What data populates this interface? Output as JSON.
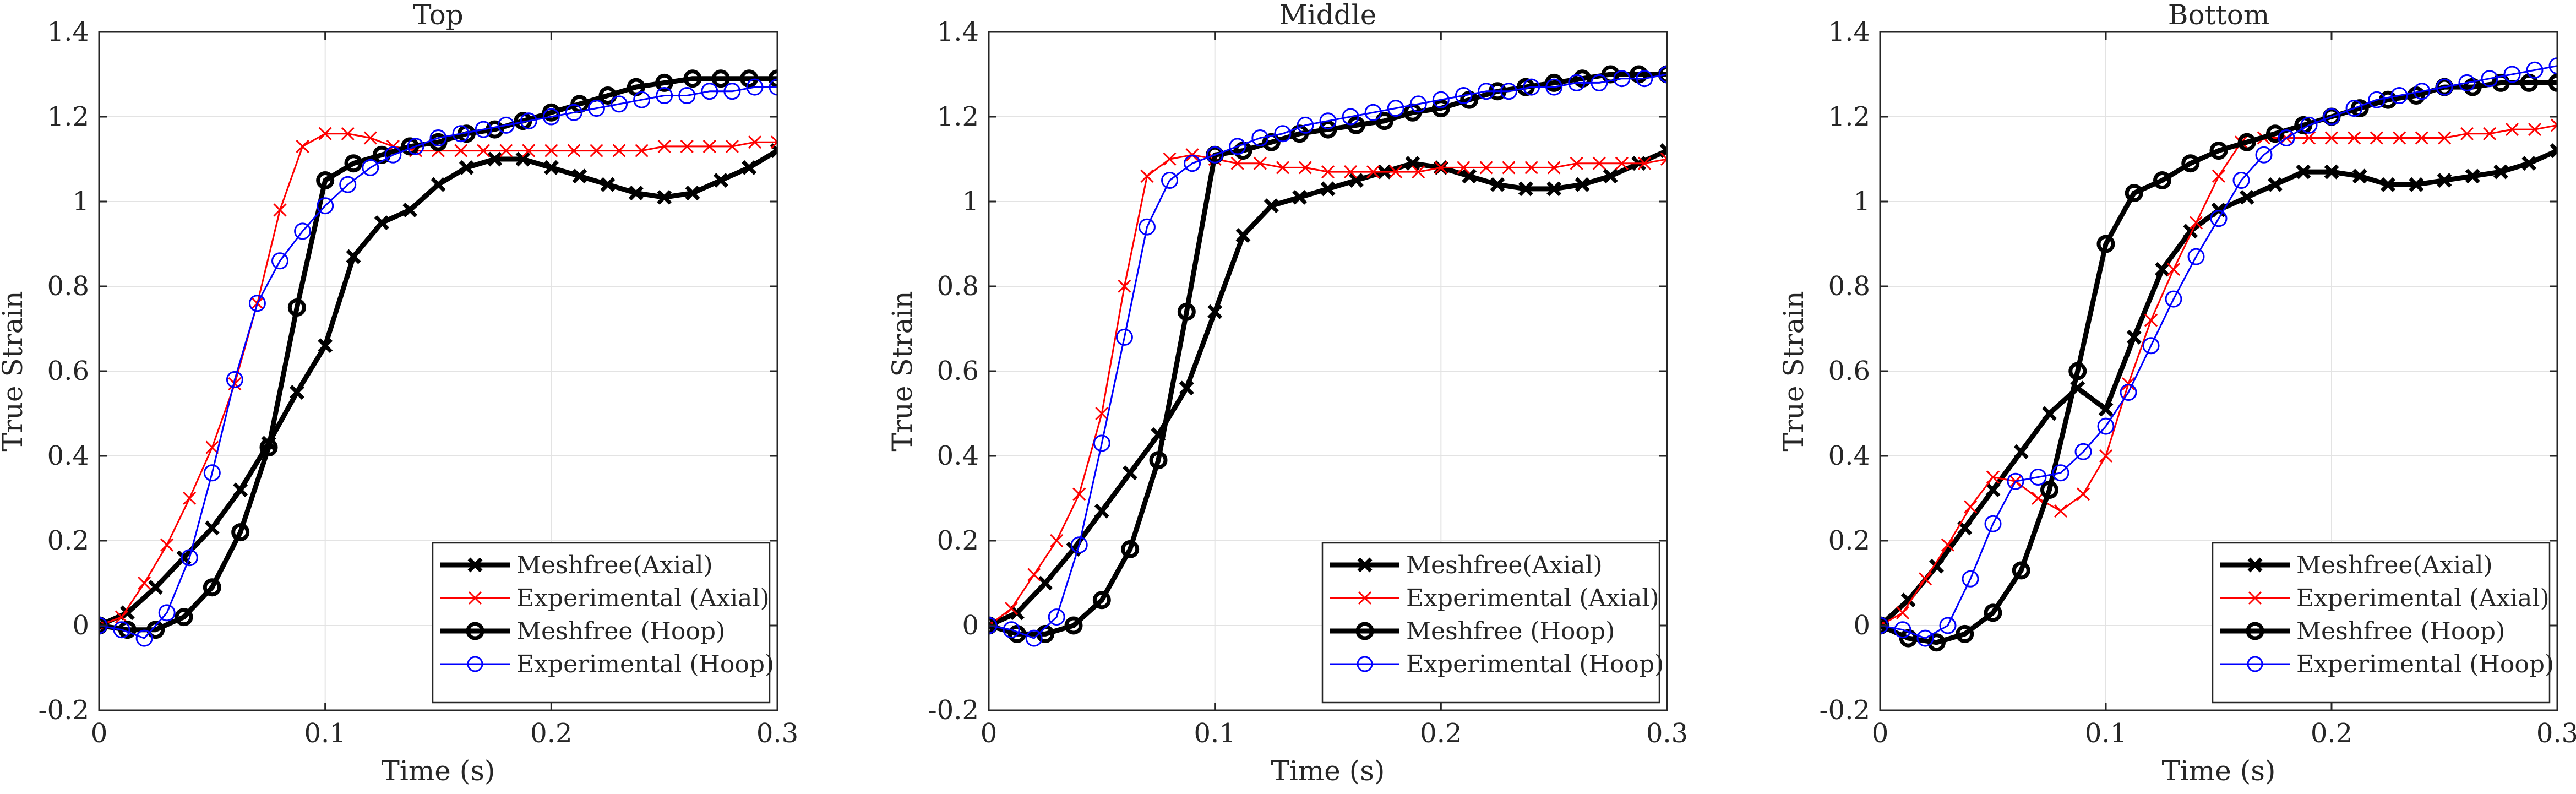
{
  "chart_data": [
    {
      "type": "line",
      "title": "Top",
      "xlabel": "Time (s)",
      "ylabel": "True Strain",
      "xlim": [
        0,
        0.3
      ],
      "ylim": [
        -0.2,
        1.4
      ],
      "xticks": [
        "0",
        "0.1",
        "0.2",
        "0.3"
      ],
      "yticks": [
        "-0.2",
        "0",
        "0.2",
        "0.4",
        "0.6",
        "0.8",
        "1",
        "1.2",
        "1.4"
      ],
      "grid": true,
      "legend_position": "bottom-right",
      "series": [
        {
          "name": "Meshfree(Axial)",
          "color": "#000000",
          "marker": "x",
          "x": [
            0,
            0.0125,
            0.025,
            0.0375,
            0.05,
            0.0625,
            0.075,
            0.0875,
            0.1,
            0.1125,
            0.125,
            0.1375,
            0.15,
            0.1625,
            0.175,
            0.1875,
            0.2,
            0.2125,
            0.225,
            0.2375,
            0.25,
            0.2625,
            0.275,
            0.2875,
            0.3
          ],
          "y": [
            0,
            0.03,
            0.09,
            0.16,
            0.23,
            0.32,
            0.43,
            0.55,
            0.66,
            0.87,
            0.95,
            0.98,
            1.04,
            1.08,
            1.1,
            1.1,
            1.08,
            1.06,
            1.04,
            1.02,
            1.01,
            1.02,
            1.05,
            1.08,
            1.12
          ]
        },
        {
          "name": "Experimental (Axial)",
          "color": "#ff0000",
          "marker": "x",
          "x": [
            0,
            0.01,
            0.02,
            0.03,
            0.04,
            0.05,
            0.06,
            0.07,
            0.08,
            0.09,
            0.1,
            0.11,
            0.12,
            0.13,
            0.14,
            0.15,
            0.16,
            0.17,
            0.18,
            0.19,
            0.2,
            0.21,
            0.22,
            0.23,
            0.24,
            0.25,
            0.26,
            0.27,
            0.28,
            0.29,
            0.3
          ],
          "y": [
            0,
            0.02,
            0.1,
            0.19,
            0.3,
            0.42,
            0.57,
            0.76,
            0.98,
            1.13,
            1.16,
            1.16,
            1.15,
            1.13,
            1.12,
            1.12,
            1.12,
            1.12,
            1.12,
            1.12,
            1.12,
            1.12,
            1.12,
            1.12,
            1.12,
            1.13,
            1.13,
            1.13,
            1.13,
            1.14,
            1.14
          ]
        },
        {
          "name": "Meshfree (Hoop)",
          "color": "#000000",
          "marker": "o",
          "x": [
            0,
            0.0125,
            0.025,
            0.0375,
            0.05,
            0.0625,
            0.075,
            0.0875,
            0.1,
            0.1125,
            0.125,
            0.1375,
            0.15,
            0.1625,
            0.175,
            0.1875,
            0.2,
            0.2125,
            0.225,
            0.2375,
            0.25,
            0.2625,
            0.275,
            0.2875,
            0.3
          ],
          "y": [
            0,
            -0.01,
            -0.01,
            0.02,
            0.09,
            0.22,
            0.42,
            0.75,
            1.05,
            1.09,
            1.11,
            1.13,
            1.14,
            1.16,
            1.17,
            1.19,
            1.21,
            1.23,
            1.25,
            1.27,
            1.28,
            1.29,
            1.29,
            1.29,
            1.29
          ]
        },
        {
          "name": "Experimental (Hoop)",
          "color": "#0000ff",
          "marker": "o",
          "x": [
            0,
            0.01,
            0.02,
            0.03,
            0.04,
            0.05,
            0.06,
            0.07,
            0.08,
            0.09,
            0.1,
            0.11,
            0.12,
            0.13,
            0.14,
            0.15,
            0.16,
            0.17,
            0.18,
            0.19,
            0.2,
            0.21,
            0.22,
            0.23,
            0.24,
            0.25,
            0.26,
            0.27,
            0.28,
            0.29,
            0.3
          ],
          "y": [
            0,
            -0.01,
            -0.03,
            0.03,
            0.16,
            0.36,
            0.58,
            0.76,
            0.86,
            0.93,
            0.99,
            1.04,
            1.08,
            1.11,
            1.13,
            1.15,
            1.16,
            1.17,
            1.18,
            1.19,
            1.2,
            1.21,
            1.22,
            1.23,
            1.24,
            1.25,
            1.25,
            1.26,
            1.26,
            1.27,
            1.27
          ]
        }
      ]
    },
    {
      "type": "line",
      "title": "Middle",
      "xlabel": "Time (s)",
      "ylabel": "True Strain",
      "xlim": [
        0,
        0.3
      ],
      "ylim": [
        -0.2,
        1.4
      ],
      "xticks": [
        "0",
        "0.1",
        "0.2",
        "0.3"
      ],
      "yticks": [
        "-0.2",
        "0",
        "0.2",
        "0.4",
        "0.6",
        "0.8",
        "1",
        "1.2",
        "1.4"
      ],
      "grid": true,
      "legend_position": "bottom-right",
      "series": [
        {
          "name": "Meshfree(Axial)",
          "color": "#000000",
          "marker": "x",
          "x": [
            0,
            0.0125,
            0.025,
            0.0375,
            0.05,
            0.0625,
            0.075,
            0.0875,
            0.1,
            0.1125,
            0.125,
            0.1375,
            0.15,
            0.1625,
            0.175,
            0.1875,
            0.2,
            0.2125,
            0.225,
            0.2375,
            0.25,
            0.2625,
            0.275,
            0.2875,
            0.3
          ],
          "y": [
            0,
            0.03,
            0.1,
            0.18,
            0.27,
            0.36,
            0.45,
            0.56,
            0.74,
            0.92,
            0.99,
            1.01,
            1.03,
            1.05,
            1.07,
            1.09,
            1.08,
            1.06,
            1.04,
            1.03,
            1.03,
            1.04,
            1.06,
            1.09,
            1.12
          ]
        },
        {
          "name": "Experimental (Axial)",
          "color": "#ff0000",
          "marker": "x",
          "x": [
            0,
            0.01,
            0.02,
            0.03,
            0.04,
            0.05,
            0.06,
            0.07,
            0.08,
            0.09,
            0.1,
            0.11,
            0.12,
            0.13,
            0.14,
            0.15,
            0.16,
            0.17,
            0.18,
            0.19,
            0.2,
            0.21,
            0.22,
            0.23,
            0.24,
            0.25,
            0.26,
            0.27,
            0.28,
            0.29,
            0.3
          ],
          "y": [
            0,
            0.04,
            0.12,
            0.2,
            0.31,
            0.5,
            0.8,
            1.06,
            1.1,
            1.11,
            1.1,
            1.09,
            1.09,
            1.08,
            1.08,
            1.07,
            1.07,
            1.07,
            1.07,
            1.07,
            1.08,
            1.08,
            1.08,
            1.08,
            1.08,
            1.08,
            1.09,
            1.09,
            1.09,
            1.09,
            1.1
          ]
        },
        {
          "name": "Meshfree (Hoop)",
          "color": "#000000",
          "marker": "o",
          "x": [
            0,
            0.0125,
            0.025,
            0.0375,
            0.05,
            0.0625,
            0.075,
            0.0875,
            0.1,
            0.1125,
            0.125,
            0.1375,
            0.15,
            0.1625,
            0.175,
            0.1875,
            0.2,
            0.2125,
            0.225,
            0.2375,
            0.25,
            0.2625,
            0.275,
            0.2875,
            0.3
          ],
          "y": [
            0,
            -0.02,
            -0.02,
            0.0,
            0.06,
            0.18,
            0.39,
            0.74,
            1.11,
            1.12,
            1.14,
            1.16,
            1.17,
            1.18,
            1.19,
            1.21,
            1.22,
            1.24,
            1.26,
            1.27,
            1.28,
            1.29,
            1.3,
            1.3,
            1.3
          ]
        },
        {
          "name": "Experimental (Hoop)",
          "color": "#0000ff",
          "marker": "o",
          "x": [
            0,
            0.01,
            0.02,
            0.03,
            0.04,
            0.05,
            0.06,
            0.07,
            0.08,
            0.09,
            0.1,
            0.11,
            0.12,
            0.13,
            0.14,
            0.15,
            0.16,
            0.17,
            0.18,
            0.19,
            0.2,
            0.21,
            0.22,
            0.23,
            0.24,
            0.25,
            0.26,
            0.27,
            0.28,
            0.29,
            0.3
          ],
          "y": [
            0,
            -0.01,
            -0.03,
            0.02,
            0.19,
            0.43,
            0.68,
            0.94,
            1.05,
            1.09,
            1.11,
            1.13,
            1.15,
            1.16,
            1.18,
            1.19,
            1.2,
            1.21,
            1.22,
            1.23,
            1.24,
            1.25,
            1.26,
            1.26,
            1.27,
            1.27,
            1.28,
            1.28,
            1.29,
            1.29,
            1.3
          ]
        }
      ]
    },
    {
      "type": "line",
      "title": "Bottom",
      "xlabel": "Time (s)",
      "ylabel": "True Strain",
      "xlim": [
        0,
        0.3
      ],
      "ylim": [
        -0.2,
        1.4
      ],
      "xticks": [
        "0",
        "0.1",
        "0.2",
        "0.3"
      ],
      "yticks": [
        "-0.2",
        "0",
        "0.2",
        "0.4",
        "0.6",
        "0.8",
        "1",
        "1.2",
        "1.4"
      ],
      "grid": true,
      "legend_position": "bottom-right",
      "series": [
        {
          "name": "Meshfree(Axial)",
          "color": "#000000",
          "marker": "x",
          "x": [
            0,
            0.0125,
            0.025,
            0.0375,
            0.05,
            0.0625,
            0.075,
            0.0875,
            0.1,
            0.1125,
            0.125,
            0.1375,
            0.15,
            0.1625,
            0.175,
            0.1875,
            0.2,
            0.2125,
            0.225,
            0.2375,
            0.25,
            0.2625,
            0.275,
            0.2875,
            0.3
          ],
          "y": [
            0,
            0.06,
            0.14,
            0.23,
            0.32,
            0.41,
            0.5,
            0.56,
            0.51,
            0.68,
            0.84,
            0.93,
            0.98,
            1.01,
            1.04,
            1.07,
            1.07,
            1.06,
            1.04,
            1.04,
            1.05,
            1.06,
            1.07,
            1.09,
            1.12
          ]
        },
        {
          "name": "Experimental (Axial)",
          "color": "#ff0000",
          "marker": "x",
          "x": [
            0,
            0.01,
            0.02,
            0.03,
            0.04,
            0.05,
            0.06,
            0.07,
            0.08,
            0.09,
            0.1,
            0.11,
            0.12,
            0.13,
            0.14,
            0.15,
            0.16,
            0.17,
            0.18,
            0.19,
            0.2,
            0.21,
            0.22,
            0.23,
            0.24,
            0.25,
            0.26,
            0.27,
            0.28,
            0.29,
            0.3
          ],
          "y": [
            0,
            0.03,
            0.11,
            0.19,
            0.28,
            0.35,
            0.34,
            0.3,
            0.27,
            0.31,
            0.4,
            0.57,
            0.72,
            0.84,
            0.95,
            1.06,
            1.14,
            1.15,
            1.15,
            1.15,
            1.15,
            1.15,
            1.15,
            1.15,
            1.15,
            1.15,
            1.16,
            1.16,
            1.17,
            1.17,
            1.18
          ]
        },
        {
          "name": "Meshfree (Hoop)",
          "color": "#000000",
          "marker": "o",
          "x": [
            0,
            0.0125,
            0.025,
            0.0375,
            0.05,
            0.0625,
            0.075,
            0.0875,
            0.1,
            0.1125,
            0.125,
            0.1375,
            0.15,
            0.1625,
            0.175,
            0.1875,
            0.2,
            0.2125,
            0.225,
            0.2375,
            0.25,
            0.2625,
            0.275,
            0.2875,
            0.3
          ],
          "y": [
            0,
            -0.03,
            -0.04,
            -0.02,
            0.03,
            0.13,
            0.32,
            0.6,
            0.9,
            1.02,
            1.05,
            1.09,
            1.12,
            1.14,
            1.16,
            1.18,
            1.2,
            1.22,
            1.24,
            1.25,
            1.27,
            1.27,
            1.28,
            1.28,
            1.28
          ]
        },
        {
          "name": "Experimental (Hoop)",
          "color": "#0000ff",
          "marker": "o",
          "x": [
            0,
            0.01,
            0.02,
            0.03,
            0.04,
            0.05,
            0.06,
            0.07,
            0.08,
            0.09,
            0.1,
            0.11,
            0.12,
            0.13,
            0.14,
            0.15,
            0.16,
            0.17,
            0.18,
            0.19,
            0.2,
            0.21,
            0.22,
            0.23,
            0.24,
            0.25,
            0.26,
            0.27,
            0.28,
            0.29,
            0.3
          ],
          "y": [
            0,
            -0.01,
            -0.03,
            0.0,
            0.11,
            0.24,
            0.34,
            0.35,
            0.36,
            0.41,
            0.47,
            0.55,
            0.66,
            0.77,
            0.87,
            0.96,
            1.05,
            1.11,
            1.15,
            1.18,
            1.2,
            1.22,
            1.24,
            1.25,
            1.26,
            1.27,
            1.28,
            1.29,
            1.3,
            1.31,
            1.32
          ]
        }
      ]
    }
  ]
}
